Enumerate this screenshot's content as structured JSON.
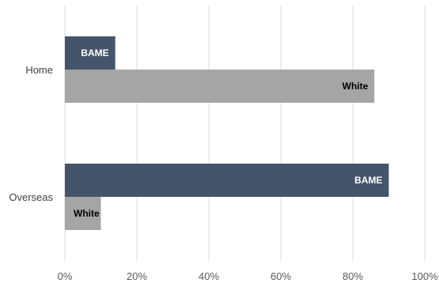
{
  "chart_data": {
    "type": "bar",
    "orientation": "horizontal",
    "categories": [
      "Home",
      "Overseas"
    ],
    "series": [
      {
        "name": "BAME",
        "values": [
          14,
          90
        ],
        "color": "#44546a",
        "label_color": "#ffffff"
      },
      {
        "name": "White",
        "values": [
          86,
          10
        ],
        "color": "#a5a5a5",
        "label_color": "#000000"
      }
    ],
    "xlim": [
      0,
      100
    ],
    "x_ticks": [
      0,
      20,
      40,
      60,
      80,
      100
    ],
    "x_tick_labels": [
      "0%",
      "20%",
      "40%",
      "60%",
      "80%",
      "100%"
    ],
    "grid": true,
    "legend": "none",
    "data_labels": "series-name-inside-end",
    "gridline_color": "#d9d9d9"
  }
}
